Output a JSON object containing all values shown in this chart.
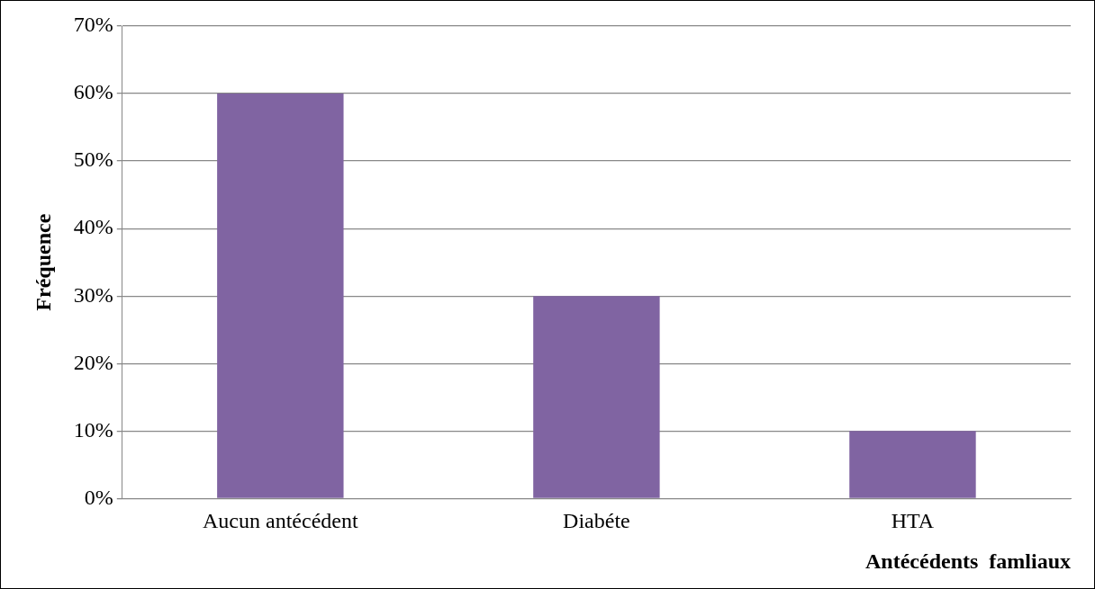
{
  "chart_data": {
    "type": "bar",
    "xlabel": "Antécédents  famliaux",
    "ylabel": "Fréquence",
    "categories": [
      "Aucun antécédent",
      "Diabéte",
      "HTA"
    ],
    "values": [
      60,
      30,
      10
    ],
    "color": "#8064a2",
    "ylim": [
      0,
      70
    ],
    "yticks": [
      {
        "value": 0,
        "label": "0%"
      },
      {
        "value": 10,
        "label": "10%"
      },
      {
        "value": 20,
        "label": "20%"
      },
      {
        "value": 30,
        "label": "30%"
      },
      {
        "value": 40,
        "label": "40%"
      },
      {
        "value": 50,
        "label": "50%"
      },
      {
        "value": 60,
        "label": "60%"
      },
      {
        "value": 70,
        "label": "70%"
      }
    ],
    "grid": "y"
  }
}
